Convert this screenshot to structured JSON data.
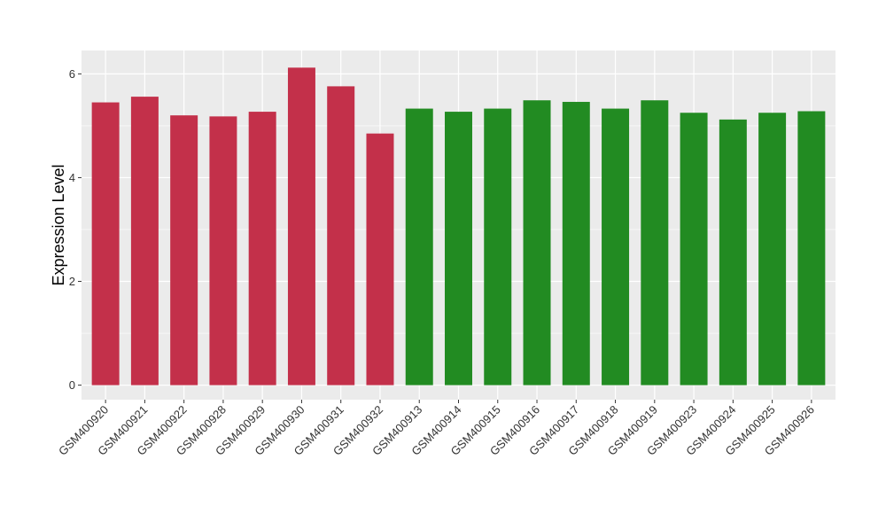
{
  "chart_data": {
    "type": "bar",
    "ylabel": "Expression Level",
    "xlabel": "",
    "ylim": [
      -0.28,
      6.45
    ],
    "yticks": [
      0,
      2,
      4,
      6
    ],
    "grid": true,
    "colors": {
      "group_a": "#C3304A",
      "group_b": "#228B22",
      "panel": "#EBEBEB",
      "grid": "#FFFFFF"
    },
    "categories": [
      "GSM400920",
      "GSM400921",
      "GSM400922",
      "GSM400928",
      "GSM400929",
      "GSM400930",
      "GSM400931",
      "GSM400932",
      "GSM400913",
      "GSM400914",
      "GSM400915",
      "GSM400916",
      "GSM400917",
      "GSM400918",
      "GSM400919",
      "GSM400923",
      "GSM400924",
      "GSM400925",
      "GSM400926"
    ],
    "values": [
      5.45,
      5.56,
      5.2,
      5.18,
      5.27,
      6.12,
      5.76,
      4.85,
      5.33,
      5.27,
      5.33,
      5.49,
      5.46,
      5.33,
      5.49,
      5.25,
      5.12,
      5.25,
      5.28
    ],
    "bar_groups": [
      "group_a",
      "group_a",
      "group_a",
      "group_a",
      "group_a",
      "group_a",
      "group_a",
      "group_a",
      "group_b",
      "group_b",
      "group_b",
      "group_b",
      "group_b",
      "group_b",
      "group_b",
      "group_b",
      "group_b",
      "group_b",
      "group_b"
    ]
  }
}
